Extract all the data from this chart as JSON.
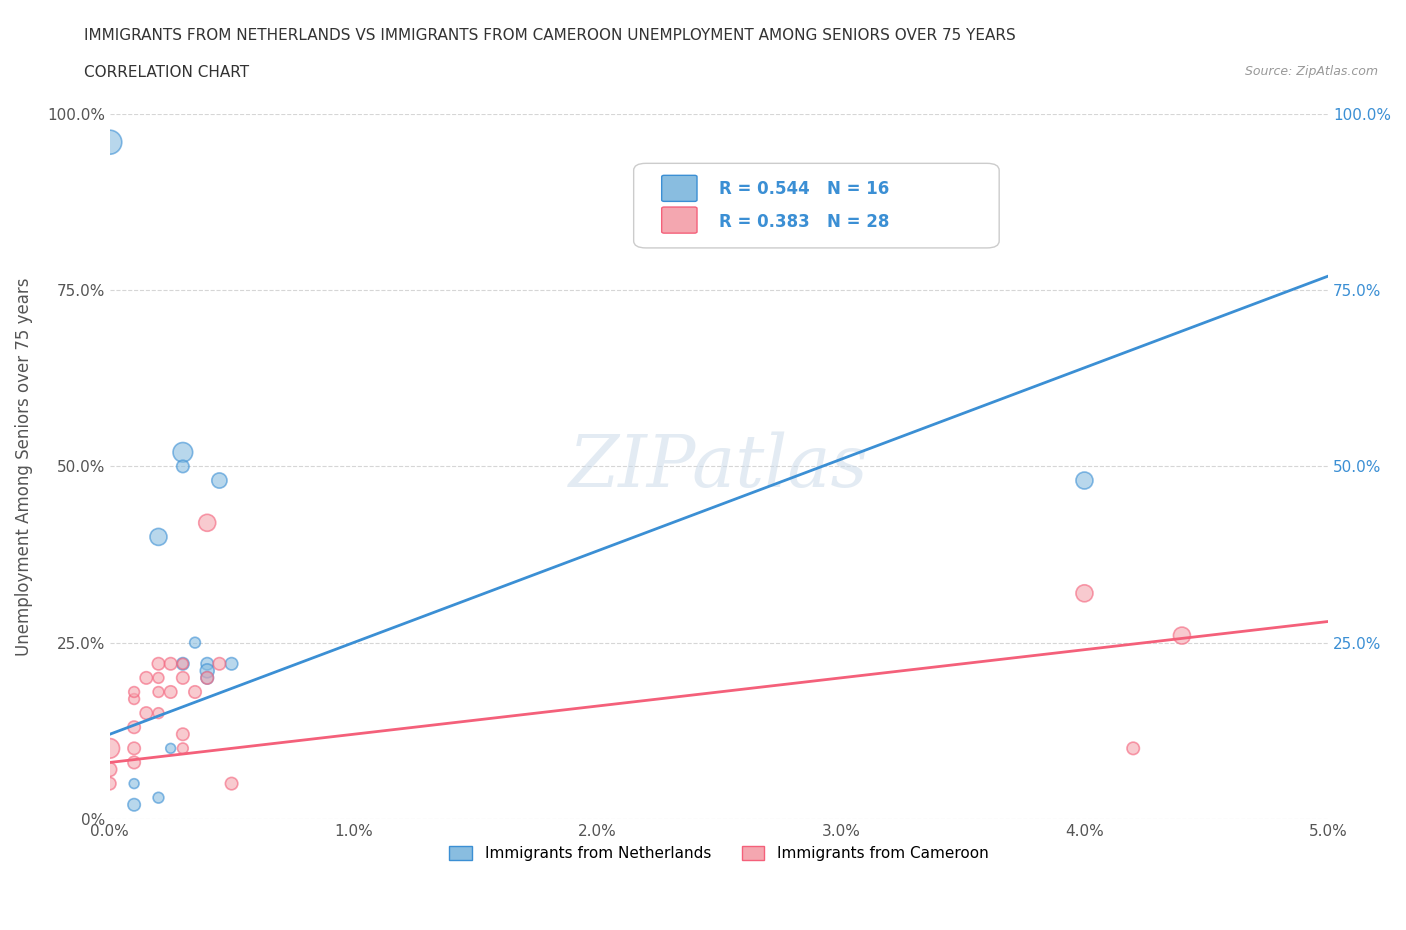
{
  "title_line1": "IMMIGRANTS FROM NETHERLANDS VS IMMIGRANTS FROM CAMEROON UNEMPLOYMENT AMONG SENIORS OVER 75 YEARS",
  "title_line2": "CORRELATION CHART",
  "source": "Source: ZipAtlas.com",
  "xlabel": "",
  "ylabel": "Unemployment Among Seniors over 75 years",
  "xlim": [
    0.0,
    0.05
  ],
  "ylim": [
    0.0,
    1.0
  ],
  "xtick_labels": [
    "0.0%",
    "1.0%",
    "2.0%",
    "3.0%",
    "4.0%",
    "5.0%"
  ],
  "xtick_vals": [
    0.0,
    0.01,
    0.02,
    0.03,
    0.04,
    0.05
  ],
  "ytick_labels": [
    "0%",
    "25.0%",
    "50.0%",
    "75.0%",
    "100.0%"
  ],
  "ytick_vals": [
    0.0,
    0.25,
    0.5,
    0.75,
    1.0
  ],
  "right_ytick_labels": [
    "100.0%",
    "75.0%",
    "50.0%",
    "25.0%"
  ],
  "netherlands_color": "#89bde0",
  "cameroon_color": "#f4a7b0",
  "netherlands_line_color": "#3b8fd4",
  "cameroon_line_color": "#f4607a",
  "R_netherlands": 0.544,
  "N_netherlands": 16,
  "R_cameroon": 0.383,
  "N_cameroon": 28,
  "watermark": "ZIPatlas",
  "netherlands_points": [
    [
      0.001,
      0.05
    ],
    [
      0.001,
      0.02
    ],
    [
      0.002,
      0.03
    ],
    [
      0.002,
      0.4
    ],
    [
      0.0025,
      0.1
    ],
    [
      0.003,
      0.52
    ],
    [
      0.003,
      0.5
    ],
    [
      0.003,
      0.22
    ],
    [
      0.0035,
      0.25
    ],
    [
      0.004,
      0.2
    ],
    [
      0.004,
      0.22
    ],
    [
      0.004,
      0.21
    ],
    [
      0.0045,
      0.48
    ],
    [
      0.005,
      0.22
    ],
    [
      0.04,
      0.48
    ],
    [
      0.0,
      0.96
    ]
  ],
  "netherlands_sizes": [
    50,
    80,
    60,
    150,
    50,
    200,
    80,
    80,
    60,
    80,
    80,
    100,
    120,
    80,
    150,
    300
  ],
  "cameroon_points": [
    [
      0.0,
      0.1
    ],
    [
      0.0,
      0.07
    ],
    [
      0.0,
      0.05
    ],
    [
      0.001,
      0.13
    ],
    [
      0.001,
      0.08
    ],
    [
      0.001,
      0.1
    ],
    [
      0.001,
      0.17
    ],
    [
      0.001,
      0.18
    ],
    [
      0.0015,
      0.2
    ],
    [
      0.0015,
      0.15
    ],
    [
      0.002,
      0.15
    ],
    [
      0.002,
      0.18
    ],
    [
      0.002,
      0.22
    ],
    [
      0.002,
      0.2
    ],
    [
      0.0025,
      0.22
    ],
    [
      0.003,
      0.12
    ],
    [
      0.003,
      0.2
    ],
    [
      0.003,
      0.1
    ],
    [
      0.003,
      0.22
    ],
    [
      0.004,
      0.42
    ],
    [
      0.004,
      0.2
    ],
    [
      0.0045,
      0.22
    ],
    [
      0.005,
      0.05
    ],
    [
      0.04,
      0.32
    ],
    [
      0.042,
      0.1
    ],
    [
      0.044,
      0.26
    ],
    [
      0.0025,
      0.18
    ],
    [
      0.0035,
      0.18
    ]
  ],
  "cameroon_sizes": [
    200,
    100,
    80,
    80,
    80,
    80,
    60,
    60,
    80,
    80,
    60,
    60,
    80,
    60,
    80,
    80,
    80,
    60,
    60,
    150,
    80,
    80,
    80,
    150,
    80,
    150,
    80,
    80
  ]
}
